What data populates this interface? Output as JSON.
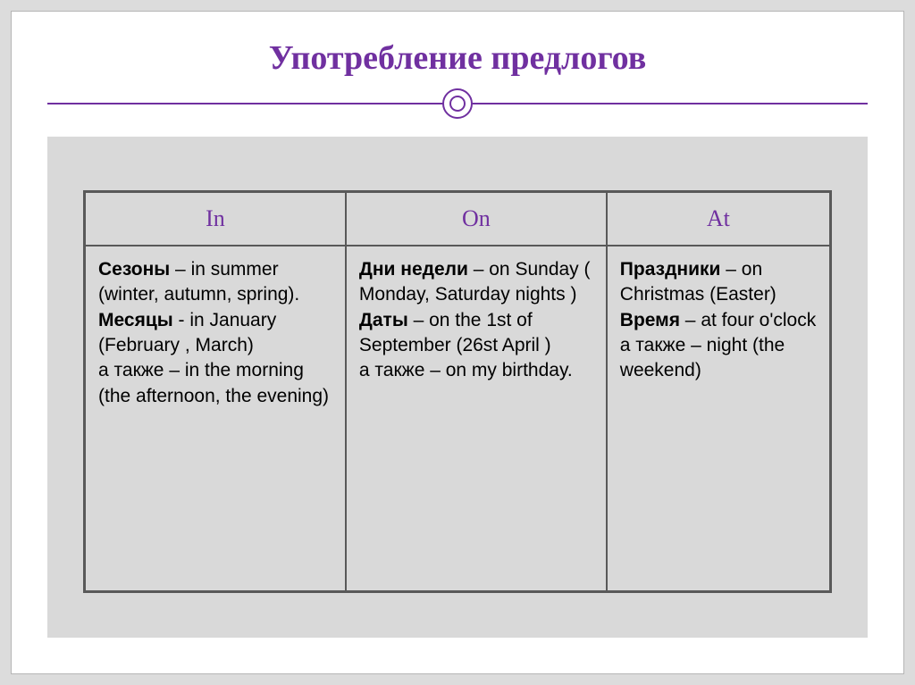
{
  "title": "Употребление предлогов",
  "table": {
    "headers": [
      "In",
      "On",
      "At"
    ],
    "cells": {
      "c1": {
        "seasons_label": "Сезоны",
        "seasons_text": " – in summer (winter, autumn, spring).",
        "months_label": "Месяцы",
        "months_text": " -  in January (February , March)",
        "also_text": " а также – in the morning (the afternoon, the evening)"
      },
      "c2": {
        "days_label": "Дни недели",
        "days_text": " – on Sunday ( Monday, Saturday nights )",
        "dates_label": "Даты",
        "dates_text": " – on the 1st of September (26st April )",
        "also_text": " а также – on my birthday."
      },
      "c3": {
        "holidays_label": "Праздники",
        "holidays_text": " – on Christmas (Easter)",
        "time_label": "Время",
        "time_text": " – at four o'clock  а также – night (the weekend)"
      }
    }
  },
  "style": {
    "accent_color": "#7030a0",
    "gray_bg": "#d9d9d9",
    "border_color": "#595959",
    "title_fontsize": 38,
    "header_fontsize": 26,
    "body_fontsize": 21
  }
}
